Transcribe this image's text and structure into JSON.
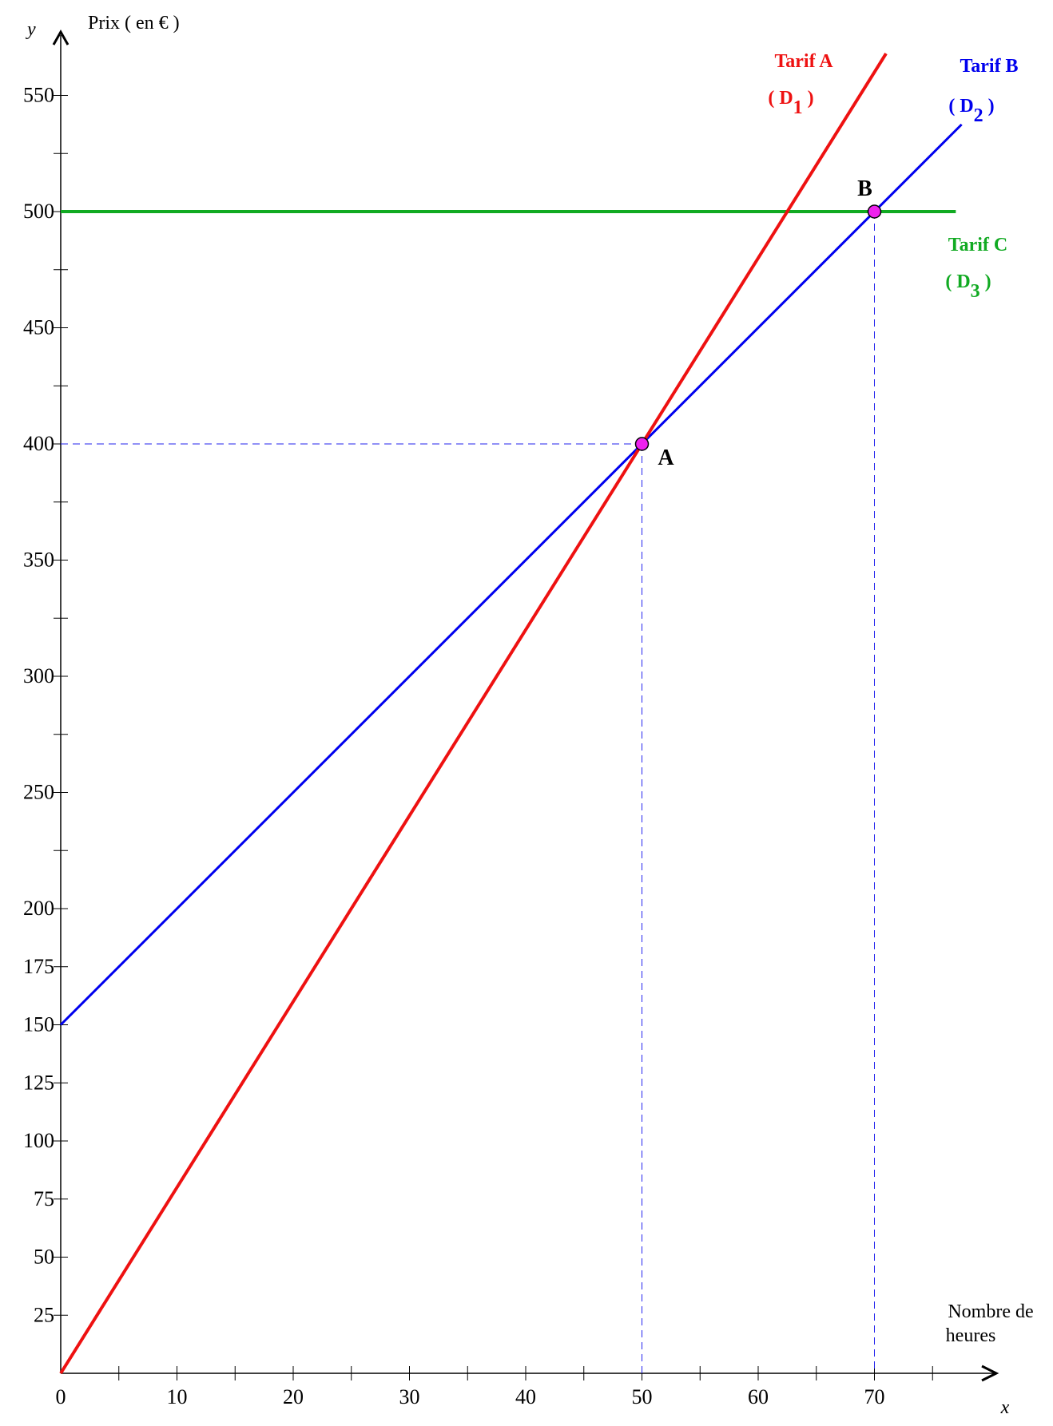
{
  "chart_data": {
    "type": "line",
    "x_axis": {
      "var": "x",
      "label_line1": "Nombre de",
      "label_line2": "heures",
      "range": [
        0,
        78
      ],
      "ticks": [
        0,
        10,
        20,
        30,
        40,
        50,
        60,
        70
      ],
      "tick_labels": [
        "0",
        "10",
        "20",
        "30",
        "40",
        "50",
        "60",
        "70"
      ],
      "minor_step": 5
    },
    "y_axis": {
      "var": "y",
      "label": "Prix ( en € )",
      "range": [
        0,
        570
      ],
      "ticks": [
        25,
        50,
        75,
        100,
        125,
        150,
        175,
        200,
        250,
        300,
        350,
        400,
        450,
        500,
        550
      ],
      "tick_labels": [
        "25",
        "50",
        "75",
        "100",
        "125",
        "150",
        "175",
        "200",
        "250",
        "300",
        "350",
        "400",
        "450",
        "500",
        "550"
      ],
      "minor_step": 25
    },
    "series": [
      {
        "name": "Tarif A",
        "sub_main": "D",
        "sub_index": "1",
        "color": "#ee1111",
        "width": 4,
        "points": [
          [
            0,
            0
          ],
          [
            71,
            568
          ]
        ]
      },
      {
        "name": "Tarif B",
        "sub_main": "D",
        "sub_index": "2",
        "color": "#0000ee",
        "width": 3,
        "points": [
          [
            0,
            150
          ],
          [
            77.5,
            537.5
          ]
        ]
      },
      {
        "name": "Tarif C",
        "sub_main": "D",
        "sub_index": "3",
        "color": "#11aa22",
        "width": 4,
        "points": [
          [
            0,
            500
          ],
          [
            77,
            500
          ]
        ]
      }
    ],
    "points": [
      {
        "label": "A",
        "x": 50,
        "y": 400,
        "fill": "#ee22ee"
      },
      {
        "label": "B",
        "x": 70,
        "y": 500,
        "fill": "#ee22ee"
      }
    ],
    "guide_color": "#2222ee"
  }
}
